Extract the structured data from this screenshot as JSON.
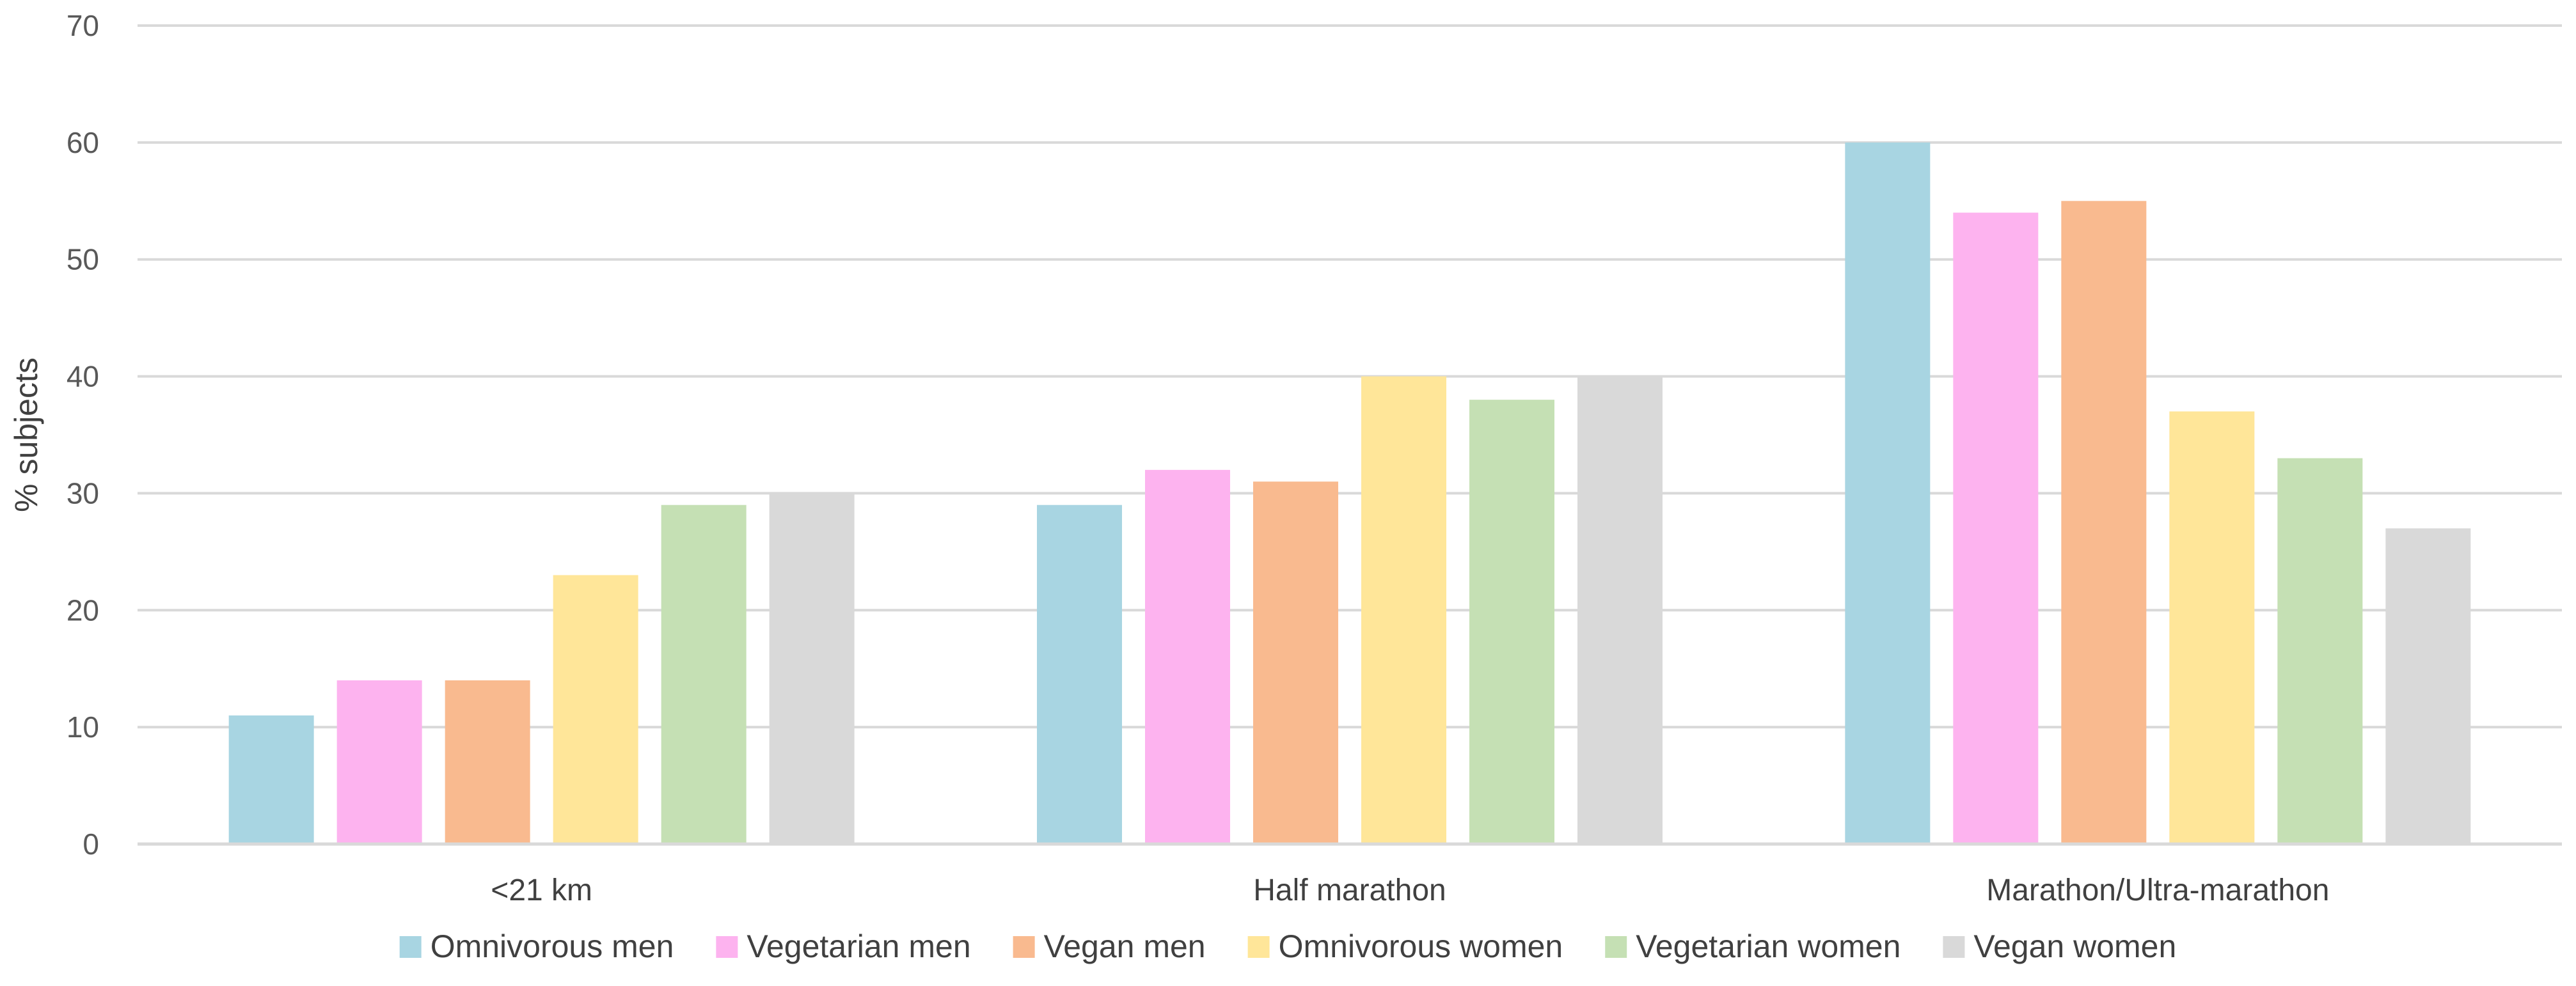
{
  "chart_data": {
    "type": "bar",
    "title": "",
    "xlabel": "",
    "ylabel": "% subjects",
    "ylim": [
      0,
      70
    ],
    "yticks": [
      0,
      10,
      20,
      30,
      40,
      50,
      60,
      70
    ],
    "grid": true,
    "legend_position": "bottom",
    "categories": [
      "<21 km",
      "Half marathon",
      "Marathon/Ultra-marathon"
    ],
    "series": [
      {
        "name": "Omnivorous men",
        "color": "#A8D5E2",
        "values": [
          11,
          29,
          60
        ]
      },
      {
        "name": "Vegetarian men",
        "color": "#FDB3EF",
        "values": [
          14,
          32,
          54
        ]
      },
      {
        "name": "Vegan men",
        "color": "#F9BA8F",
        "values": [
          14,
          31,
          55
        ]
      },
      {
        "name": "Omnivorous women",
        "color": "#FFE699",
        "values": [
          23,
          40,
          37
        ]
      },
      {
        "name": "Vegetarian women",
        "color": "#C5E0B4",
        "values": [
          29,
          38,
          33
        ]
      },
      {
        "name": "Vegan women",
        "color": "#D9D9D9",
        "values": [
          30,
          40,
          27
        ]
      }
    ]
  }
}
